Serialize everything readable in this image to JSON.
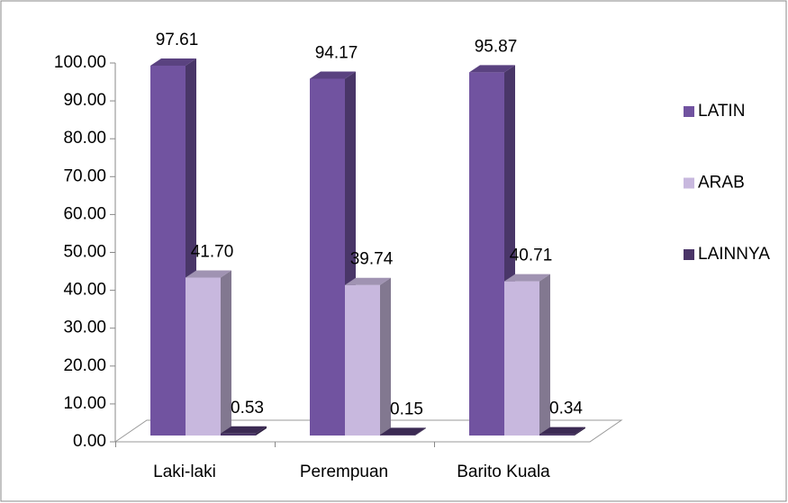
{
  "chart_data": {
    "type": "bar3d",
    "categories": [
      "Laki-laki",
      "Perempuan",
      "Barito Kuala"
    ],
    "series": [
      {
        "name": "LATIN",
        "color": "#7153a0",
        "values": [
          97.61,
          94.17,
          95.87
        ],
        "value_labels": [
          "97.61",
          "94.17",
          "95.87"
        ]
      },
      {
        "name": "ARAB",
        "color": "#c8b8de",
        "values": [
          41.7,
          39.74,
          40.71
        ],
        "value_labels": [
          "41.70",
          "39.74",
          "40.71"
        ]
      },
      {
        "name": "LAINNYA",
        "color": "#4a3468",
        "values": [
          0.53,
          0.15,
          0.34
        ],
        "value_labels": [
          "0.53",
          "0.15",
          "0.34"
        ]
      }
    ],
    "ylim": [
      0,
      100
    ],
    "yticks": [
      {
        "value": 0,
        "label": "0.00"
      },
      {
        "value": 10,
        "label": "10.00"
      },
      {
        "value": 20,
        "label": "20.00"
      },
      {
        "value": 30,
        "label": "30.00"
      },
      {
        "value": 40,
        "label": "40.00"
      },
      {
        "value": 50,
        "label": "50.00"
      },
      {
        "value": 60,
        "label": "60.00"
      },
      {
        "value": 70,
        "label": "70.00"
      },
      {
        "value": 80,
        "label": "80.00"
      },
      {
        "value": 90,
        "label": "90.00"
      },
      {
        "value": 100,
        "label": "100.00"
      }
    ],
    "legend": "right"
  }
}
